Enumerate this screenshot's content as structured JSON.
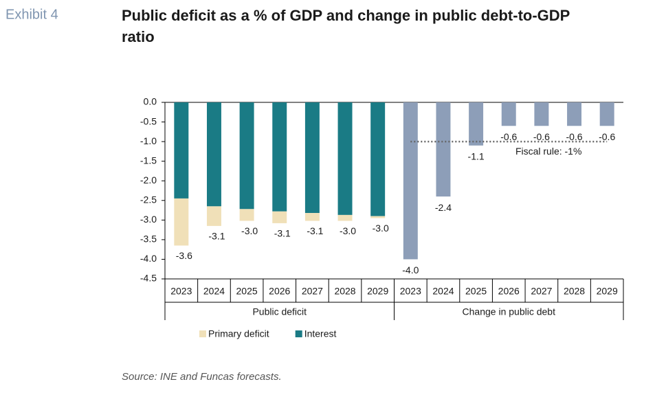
{
  "chart_data": {
    "type": "grouped_stacked_bar",
    "label": "Exhibit 4",
    "title": [
      "Public deficit as a % of GDP and change in public debt-to-GDP",
      "ratio"
    ],
    "source": "Source: INE and Funcas forecasts.",
    "ylim": [
      -4.5,
      0
    ],
    "yticks": [
      {
        "value": 0,
        "label": "0.0"
      },
      -0.5,
      {
        "value": -1,
        "label": "-1.0"
      },
      -1.5,
      {
        "value": -2,
        "label": "-2.0"
      },
      -2.5,
      {
        "value": -3,
        "label": "-3.0"
      },
      -3.5,
      {
        "value": -4,
        "label": "-4.0"
      },
      -4.5
    ],
    "groups": [
      {
        "label": "Public deficit",
        "categories": [
          "2023",
          "2024",
          "2025",
          "2026",
          "2027",
          "2028",
          "2029"
        ],
        "series": [
          {
            "name": "Primary deficit",
            "color": "#f0e0b8",
            "values": [
              -1.2,
              -0.5,
              -0.3,
              -0.3,
              -0.2,
              -0.15,
              -0.05
            ]
          },
          {
            "name": "Interest",
            "color": "#1a7b85",
            "values": [
              -2.45,
              -2.65,
              -2.72,
              -2.78,
              -2.82,
              -2.87,
              -2.9
            ]
          }
        ],
        "totals": [
          -3.6,
          -3.1,
          -3.0,
          -3.1,
          -3.1,
          -3.0,
          -3.0
        ],
        "total_labels": [
          "-3.6",
          "-3.1",
          "-3.0",
          "-3.1",
          "-3.1",
          "-3.0",
          "-3.0"
        ]
      },
      {
        "label": "Change in public debt",
        "categories": [
          "2023",
          "2024",
          "2025",
          "2026",
          "2027",
          "2028",
          "2029"
        ],
        "color": "#8d9eb8",
        "values": [
          -4.0,
          -2.4,
          -1.1,
          -0.6,
          -0.6,
          -0.6,
          -0.6
        ],
        "value_labels": [
          "-4.0",
          "-2.4",
          "-1.1",
          "-0.6",
          "-0.6",
          "-0.6",
          "-0.6"
        ]
      }
    ],
    "reference_line": {
      "value": -1,
      "label": "Fiscal rule: -1%"
    }
  }
}
